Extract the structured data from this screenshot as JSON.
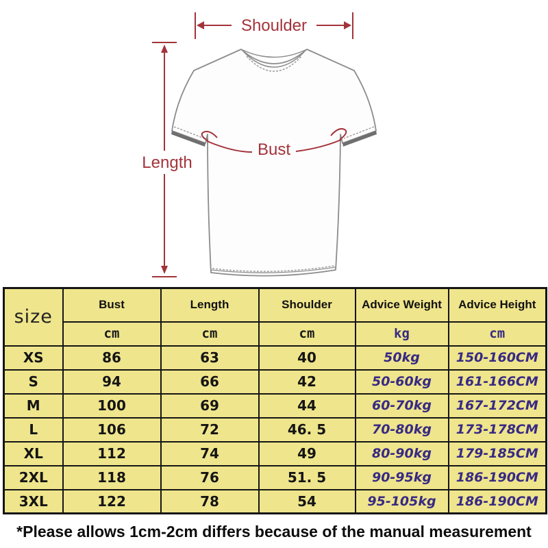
{
  "diagram": {
    "labels": {
      "shoulder": "Shoulder",
      "length": "Length",
      "bust": "Bust"
    },
    "colors": {
      "dimension_red": "#A3333A",
      "shirt_outline": "#8C8C8C",
      "cuff_band": "#6F6F6F"
    }
  },
  "table": {
    "size_header": "size",
    "columns": [
      {
        "label": "Bust",
        "unit": "cm",
        "purple": false
      },
      {
        "label": "Length",
        "unit": "cm",
        "purple": false
      },
      {
        "label": "Shoulder",
        "unit": "cm",
        "purple": false
      },
      {
        "label": "Advice Weight",
        "unit": "kg",
        "purple": true
      },
      {
        "label": "Advice Height",
        "unit": "cm",
        "purple": true
      }
    ],
    "rows": [
      {
        "size": "XS",
        "bust": "86",
        "length": "63",
        "shoulder": "40",
        "weight": "50kg",
        "height": "150-160CM"
      },
      {
        "size": "S",
        "bust": "94",
        "length": "66",
        "shoulder": "42",
        "weight": "50-60kg",
        "height": "161-166CM"
      },
      {
        "size": "M",
        "bust": "100",
        "length": "69",
        "shoulder": "44",
        "weight": "60-70kg",
        "height": "167-172CM"
      },
      {
        "size": "L",
        "bust": "106",
        "length": "72",
        "shoulder": "46. 5",
        "weight": "70-80kg",
        "height": "173-178CM"
      },
      {
        "size": "XL",
        "bust": "112",
        "length": "74",
        "shoulder": "49",
        "weight": "80-90kg",
        "height": "179-185CM"
      },
      {
        "size": "2XL",
        "bust": "118",
        "length": "76",
        "shoulder": "51. 5",
        "weight": "90-95kg",
        "height": "186-190CM"
      },
      {
        "size": "3XL",
        "bust": "122",
        "length": "78",
        "shoulder": "54",
        "weight": "95-105kg",
        "height": "186-190CM"
      }
    ],
    "colors": {
      "background": "#EFE58C",
      "purple_text": "#372A84",
      "border": "#151515"
    }
  },
  "footnote": "*Please allows 1cm-2cm differs because of the manual measurement"
}
